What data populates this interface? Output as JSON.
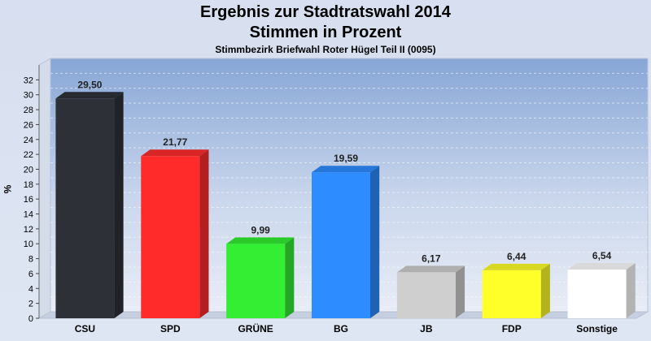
{
  "title": "Ergebnis zur Stadtratswahl 2014",
  "subtitle": "Stimmen in Prozent",
  "subsubtitle": "Stimmbezirk Briefwahl Roter Hügel Teil II (0095)",
  "chart_data": {
    "type": "bar",
    "title": "Ergebnis zur Stadtratswahl 2014",
    "subtitle": "Stimmen in Prozent",
    "ylabel": "%",
    "xlabel": "",
    "ylim": [
      0,
      34
    ],
    "yticks": [
      0,
      2,
      4,
      6,
      8,
      10,
      12,
      14,
      16,
      18,
      20,
      22,
      24,
      26,
      28,
      30,
      32
    ],
    "grid": true,
    "categories": [
      "CSU",
      "SPD",
      "GRÜNE",
      "BG",
      "JB",
      "FDP",
      "Sonstige"
    ],
    "values": [
      29.5,
      21.77,
      9.99,
      19.59,
      6.17,
      6.44,
      6.54
    ],
    "value_labels": [
      "29,50",
      "21,77",
      "9,99",
      "19,59",
      "6,17",
      "6,44",
      "6,54"
    ],
    "colors": [
      "#2e3038",
      "#ff2b2b",
      "#33ee33",
      "#2d8cff",
      "#cfcfcf",
      "#ffff2a",
      "#ffffff"
    ]
  }
}
